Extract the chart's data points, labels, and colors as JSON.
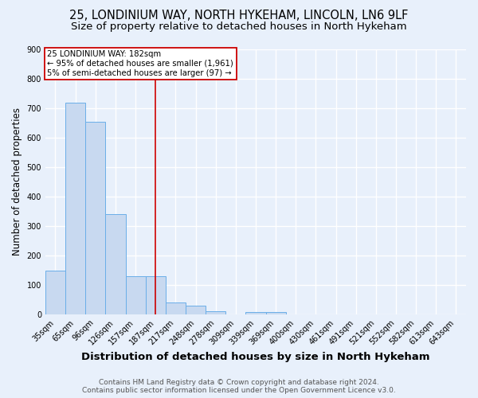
{
  "title1": "25, LONDINIUM WAY, NORTH HYKEHAM, LINCOLN, LN6 9LF",
  "title2": "Size of property relative to detached houses in North Hykeham",
  "xlabel": "Distribution of detached houses by size in North Hykeham",
  "ylabel": "Number of detached properties",
  "footnote1": "Contains HM Land Registry data © Crown copyright and database right 2024.",
  "footnote2": "Contains public sector information licensed under the Open Government Licence v3.0.",
  "bin_labels": [
    "35sqm",
    "65sqm",
    "96sqm",
    "126sqm",
    "157sqm",
    "187sqm",
    "217sqm",
    "248sqm",
    "278sqm",
    "309sqm",
    "339sqm",
    "369sqm",
    "400sqm",
    "430sqm",
    "461sqm",
    "491sqm",
    "521sqm",
    "552sqm",
    "582sqm",
    "613sqm",
    "643sqm"
  ],
  "bar_heights": [
    150,
    718,
    652,
    340,
    130,
    130,
    42,
    30,
    11,
    0,
    8,
    8,
    0,
    0,
    0,
    0,
    0,
    0,
    0,
    0,
    0
  ],
  "bar_color": "#c8d9f0",
  "bar_edge_color": "#6aaee8",
  "vline_x": 5,
  "vline_color": "#cc0000",
  "annotation_line1": "25 LONDINIUM WAY: 182sqm",
  "annotation_line2": "← 95% of detached houses are smaller (1,961)",
  "annotation_line3": "5% of semi-detached houses are larger (97) →",
  "annotation_box_color": "#ffffff",
  "annotation_box_edge": "#cc0000",
  "ylim": [
    0,
    900
  ],
  "yticks": [
    0,
    100,
    200,
    300,
    400,
    500,
    600,
    700,
    800,
    900
  ],
  "bg_color": "#e8f0fb",
  "plot_bg_color": "#e8f0fb",
  "grid_color": "#ffffff",
  "title1_fontsize": 10.5,
  "title2_fontsize": 9.5,
  "xlabel_fontsize": 9.5,
  "ylabel_fontsize": 8.5,
  "tick_fontsize": 7,
  "footnote_fontsize": 6.5
}
